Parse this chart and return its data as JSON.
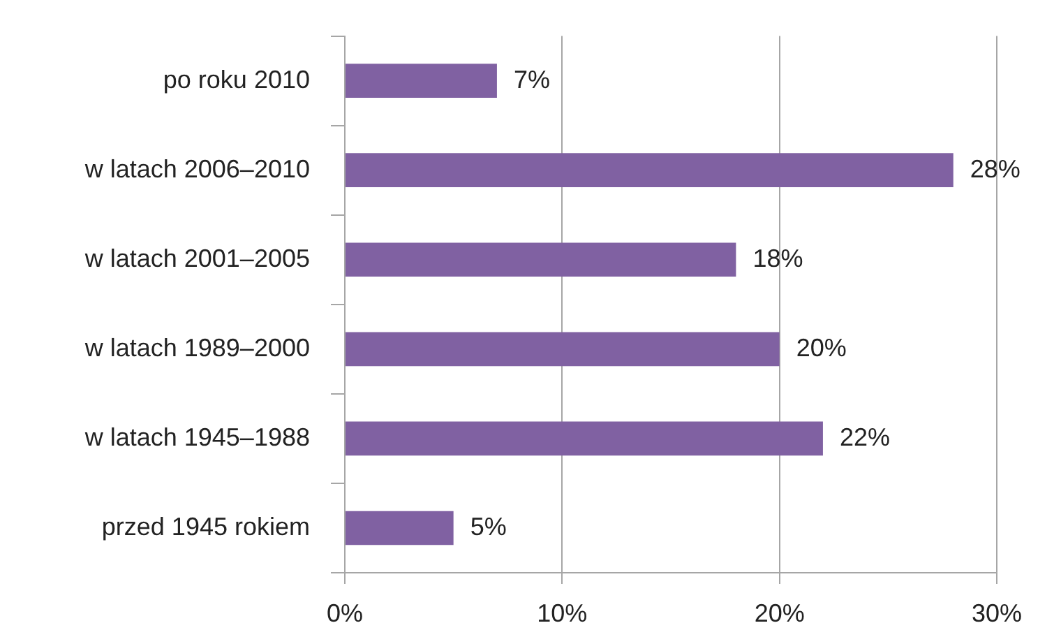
{
  "chart_data": {
    "type": "bar",
    "orientation": "horizontal",
    "categories": [
      "po roku 2010",
      "w latach 2006–2010",
      "w latach 2001–2005",
      "w latach 1989–2000",
      "w latach 1945–1988",
      "przed 1945 rokiem"
    ],
    "values": [
      7,
      28,
      18,
      20,
      22,
      5
    ],
    "value_labels": [
      "7%",
      "28%",
      "18%",
      "20%",
      "22%",
      "5%"
    ],
    "color": "#8061a2",
    "xlim": [
      0,
      30
    ],
    "xticks": [
      {
        "value": 0,
        "label": "0%"
      },
      {
        "value": 10,
        "label": "10%"
      },
      {
        "value": 20,
        "label": "20%"
      },
      {
        "value": 30,
        "label": "30%"
      }
    ],
    "grid": "x"
  }
}
